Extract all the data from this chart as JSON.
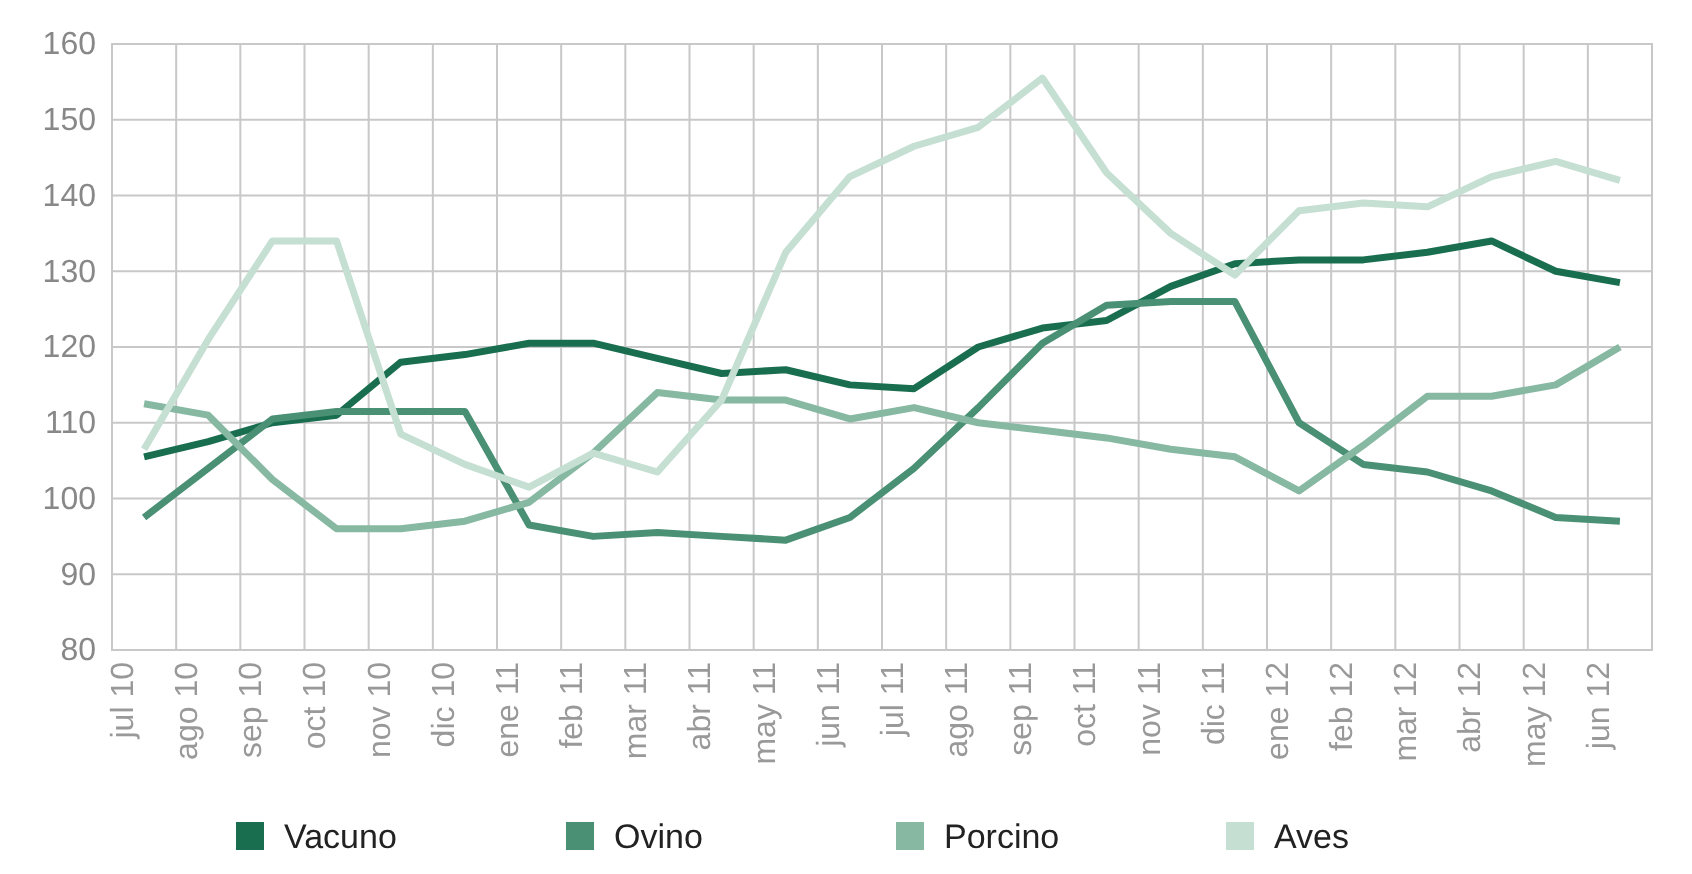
{
  "chart_data": {
    "type": "line",
    "categories": [
      "jul 10",
      "ago 10",
      "sep 10",
      "oct 10",
      "nov 10",
      "dic 10",
      "ene 11",
      "feb 11",
      "mar 11",
      "abr 11",
      "may 11",
      "jun 11",
      "jul 11",
      "ago 11",
      "sep 11",
      "oct 11",
      "nov 11",
      "dic 11",
      "ene 12",
      "feb 12",
      "mar 12",
      "abr 12",
      "may 12",
      "jun 12"
    ],
    "series": [
      {
        "name": "Vacuno",
        "color": "#1a6e50",
        "values": [
          105.5,
          107.5,
          110,
          111,
          118,
          119,
          120.5,
          120.5,
          118.5,
          116.5,
          117,
          115,
          114.5,
          120,
          122.5,
          123.5,
          128,
          131,
          131.5,
          131.5,
          132.5,
          134,
          130,
          128.5
        ]
      },
      {
        "name": "Ovino",
        "color": "#4a9075",
        "values": [
          97.5,
          104,
          110.5,
          111.5,
          111.5,
          111.5,
          96.5,
          95,
          95.5,
          95,
          94.5,
          97.5,
          104,
          112,
          120.5,
          125.5,
          126,
          126,
          110,
          104.5,
          103.5,
          101,
          97.5,
          97
        ]
      },
      {
        "name": "Porcino",
        "color": "#86b8a2",
        "values": [
          112.5,
          111,
          102.5,
          96,
          96,
          97,
          99.5,
          106,
          114,
          113,
          113,
          110.5,
          112,
          110,
          109,
          108,
          106.5,
          105.5,
          101,
          107,
          113.5,
          113.5,
          115,
          120
        ]
      },
      {
        "name": "Aves",
        "color": "#c5dfd3",
        "values": [
          106.5,
          121,
          134,
          134,
          108.5,
          104.5,
          101.5,
          106,
          103.5,
          113,
          132.5,
          142.5,
          146.5,
          149,
          155.5,
          143,
          135,
          129.5,
          138,
          139,
          138.5,
          142.5,
          144.5,
          142
        ]
      }
    ],
    "ylim": [
      80,
      160
    ],
    "yticks": [
      80,
      90,
      100,
      110,
      120,
      130,
      140,
      150,
      160
    ],
    "grid": true,
    "legend": "bottom",
    "marker": "none",
    "line_style": "solid"
  }
}
